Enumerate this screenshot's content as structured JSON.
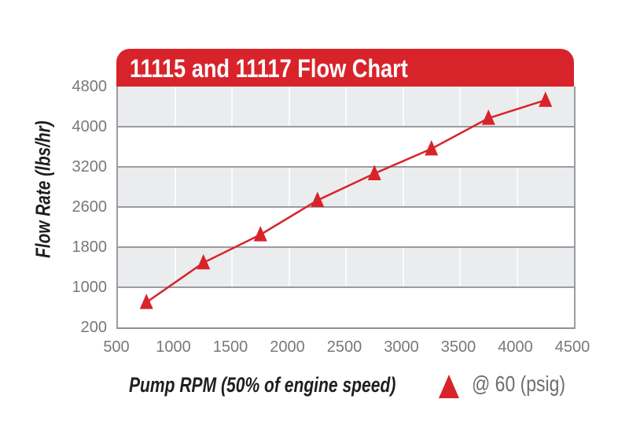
{
  "title": "11115 and 11117 Flow Chart",
  "colors": {
    "accent_red": "#d8232a",
    "band_gray": "#ebecee",
    "grid_gray": "#9a9ca0",
    "tick_text": "#77787b",
    "axis_title_text": "#221e1f",
    "legend_text": "#6d6e71",
    "title_text": "#ffffff"
  },
  "chart_data": {
    "type": "line",
    "title": "11115 and 11117 Flow Chart",
    "xlabel": "Pump RPM (50% of engine speed)",
    "ylabel": "Flow Rate (lbs/hr)",
    "x_ticks": [
      500,
      1000,
      1500,
      2000,
      2500,
      3000,
      3500,
      4000,
      4500
    ],
    "y_ticks_top_to_bottom": [
      4800,
      4000,
      3200,
      2600,
      1800,
      1000,
      200
    ],
    "xlim": [
      500,
      4500
    ],
    "grid": "alternating gray/white horizontal bands with light vertical gridlines",
    "legend": {
      "label": "@ 60 (psig)",
      "marker": "triangle-up",
      "position": "below chart, right of x-axis title"
    },
    "series": [
      {
        "name": "@ 60 (psig)",
        "marker": "triangle-up",
        "color": "#d8232a",
        "x": [
          750,
          1250,
          1750,
          2250,
          2750,
          3250,
          3750,
          4250
        ],
        "y": [
          700,
          1490,
          2050,
          2700,
          3100,
          3560,
          4170,
          4530
        ]
      }
    ]
  }
}
